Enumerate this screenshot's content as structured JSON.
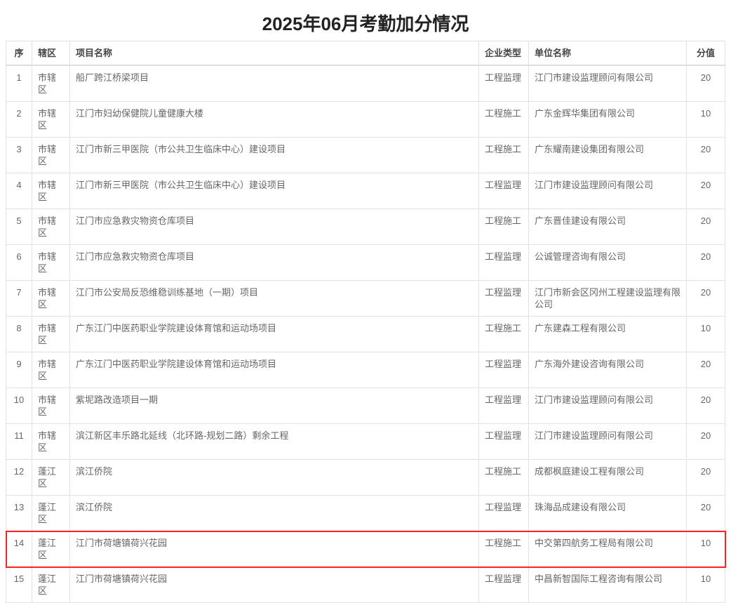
{
  "title": "2025年06月考勤加分情况",
  "columns": [
    "序",
    "辖区",
    "项目名称",
    "企业类型",
    "单位名称",
    "分值"
  ],
  "highlight_color": "#ff2222",
  "highlighted_row": 14,
  "rows": [
    {
      "no": "1",
      "area": "市辖区",
      "project": "船厂跨江桥梁项目",
      "type": "工程监理",
      "company": "江门市建设监理顾问有限公司",
      "score": "20"
    },
    {
      "no": "2",
      "area": "市辖区",
      "project": "江门市妇幼保健院儿童健康大楼",
      "type": "工程施工",
      "company": "广东金辉华集团有限公司",
      "score": "10"
    },
    {
      "no": "3",
      "area": "市辖区",
      "project": "江门市新三甲医院（市公共卫生临床中心）建设项目",
      "type": "工程施工",
      "company": "广东耀南建设集团有限公司",
      "score": "20"
    },
    {
      "no": "4",
      "area": "市辖区",
      "project": "江门市新三甲医院（市公共卫生临床中心）建设项目",
      "type": "工程监理",
      "company": "江门市建设监理顾问有限公司",
      "score": "20"
    },
    {
      "no": "5",
      "area": "市辖区",
      "project": "江门市应急救灾物资仓库项目",
      "type": "工程施工",
      "company": "广东晋佳建设有限公司",
      "score": "20"
    },
    {
      "no": "6",
      "area": "市辖区",
      "project": "江门市应急救灾物资仓库项目",
      "type": "工程监理",
      "company": "公诚管理咨询有限公司",
      "score": "20"
    },
    {
      "no": "7",
      "area": "市辖区",
      "project": "江门市公安局反恐维稳训练基地（一期）项目",
      "type": "工程监理",
      "company": "江门市新会区冈州工程建设监理有限公司",
      "score": "20"
    },
    {
      "no": "8",
      "area": "市辖区",
      "project": "广东江门中医药职业学院建设体育馆和运动场项目",
      "type": "工程施工",
      "company": "广东建森工程有限公司",
      "score": "10"
    },
    {
      "no": "9",
      "area": "市辖区",
      "project": "广东江门中医药职业学院建设体育馆和运动场项目",
      "type": "工程监理",
      "company": "广东海外建设咨询有限公司",
      "score": "20"
    },
    {
      "no": "10",
      "area": "市辖区",
      "project": "紫坭路改造项目一期",
      "type": "工程监理",
      "company": "江门市建设监理顾问有限公司",
      "score": "20"
    },
    {
      "no": "11",
      "area": "市辖区",
      "project": "滨江新区丰乐路北延线（北环路-规划二路）剩余工程",
      "type": "工程监理",
      "company": "江门市建设监理顾问有限公司",
      "score": "20"
    },
    {
      "no": "12",
      "area": "蓬江区",
      "project": "滨江侨院",
      "type": "工程施工",
      "company": "成都枫庭建设工程有限公司",
      "score": "20"
    },
    {
      "no": "13",
      "area": "蓬江区",
      "project": "滨江侨院",
      "type": "工程监理",
      "company": "珠海品成建设有限公司",
      "score": "20"
    },
    {
      "no": "14",
      "area": "蓬江区",
      "project": "江门市荷塘镇荷兴花园",
      "type": "工程施工",
      "company": "中交第四航务工程局有限公司",
      "score": "10"
    },
    {
      "no": "15",
      "area": "蓬江区",
      "project": "江门市荷塘镇荷兴花园",
      "type": "工程监理",
      "company": "中昌新智国际工程咨询有限公司",
      "score": "10"
    }
  ]
}
